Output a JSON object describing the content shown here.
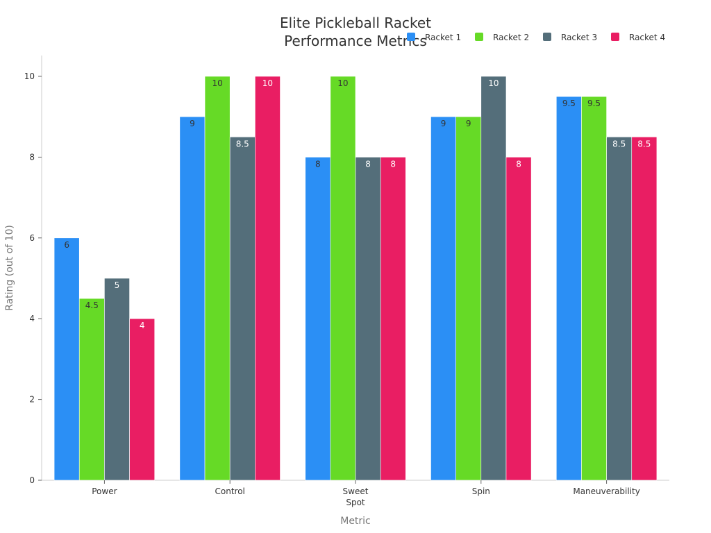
{
  "chart_data": {
    "type": "bar",
    "title_lines": [
      "Elite Pickleball Racket",
      "Performance Metrics"
    ],
    "xlabel": "Metric",
    "ylabel": "Rating (out of 10)",
    "categories": [
      [
        "Power"
      ],
      [
        "Control"
      ],
      [
        "Sweet",
        "Spot"
      ],
      [
        "Spin"
      ],
      [
        "Maneuverability"
      ]
    ],
    "series": [
      {
        "name": "Racket 1",
        "color": "#2b8ff5",
        "label_color": "#333333",
        "values": [
          6,
          9,
          8,
          9,
          9.5
        ]
      },
      {
        "name": "Racket 2",
        "color": "#66da26",
        "label_color": "#333333",
        "values": [
          4.5,
          10,
          10,
          9,
          9.5
        ]
      },
      {
        "name": "Racket 3",
        "color": "#546e7a",
        "label_color": "#ffffff",
        "values": [
          5,
          8.5,
          8,
          10,
          8.5
        ]
      },
      {
        "name": "Racket 4",
        "color": "#e91e63",
        "label_color": "#ffffff",
        "values": [
          4,
          10,
          8,
          8,
          8.5
        ]
      }
    ],
    "ylim": [
      0,
      10
    ],
    "yticks": [
      0,
      2,
      4,
      6,
      8,
      10
    ],
    "grid": false,
    "legend_position": "top-right"
  }
}
